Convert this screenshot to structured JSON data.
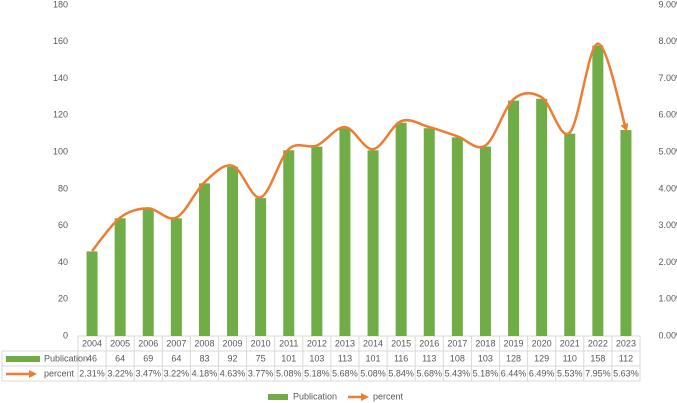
{
  "chart_data": {
    "type": "bar",
    "categories": [
      "2004",
      "2005",
      "2006",
      "2007",
      "2008",
      "2009",
      "2010",
      "2011",
      "2012",
      "2013",
      "2014",
      "2015",
      "2016",
      "2017",
      "2018",
      "2019",
      "2020",
      "2021",
      "2022",
      "2023"
    ],
    "series": [
      {
        "name": "Publication",
        "type": "bar",
        "color": "#70ad47",
        "values": [
          46,
          64,
          69,
          64,
          83,
          92,
          75,
          101,
          103,
          113,
          101,
          116,
          113,
          108,
          103,
          128,
          129,
          110,
          158,
          112
        ]
      },
      {
        "name": "percent",
        "type": "line",
        "axis": "y2",
        "color": "#ed7d31",
        "values": [
          2.31,
          3.22,
          3.47,
          3.22,
          4.18,
          4.63,
          3.77,
          5.08,
          5.18,
          5.68,
          5.08,
          5.84,
          5.68,
          5.43,
          5.18,
          6.44,
          6.49,
          5.53,
          7.95,
          5.63
        ],
        "value_labels": [
          "2.31%",
          "3.22%",
          "3.47%",
          "3.22%",
          "4.18%",
          "4.63%",
          "3.77%",
          "5.08%",
          "5.18%",
          "5.68%",
          "5.08%",
          "5.84%",
          "5.68%",
          "5.43%",
          "5.18%",
          "6.44%",
          "6.49%",
          "5.53%",
          "7.95%",
          "5.63%"
        ]
      }
    ],
    "ylim": [
      0,
      180
    ],
    "yticks": [
      0,
      20,
      40,
      60,
      80,
      100,
      120,
      140,
      160,
      180
    ],
    "y2lim": [
      0,
      9
    ],
    "y2ticks": [
      {
        "value": 0,
        "label": "0.00%"
      },
      {
        "value": 1,
        "label": "1.00%"
      },
      {
        "value": 2,
        "label": "2.00%"
      },
      {
        "value": 3,
        "label": "3.00%"
      },
      {
        "value": 4,
        "label": "4.00%"
      },
      {
        "value": 5,
        "label": "5.00%"
      },
      {
        "value": 6,
        "label": "6.00%"
      },
      {
        "value": 7,
        "label": "7.00%"
      },
      {
        "value": 8,
        "label": "8.00%"
      },
      {
        "value": 9,
        "label": "9.00%"
      }
    ],
    "grid": false,
    "legend": "bottom"
  }
}
